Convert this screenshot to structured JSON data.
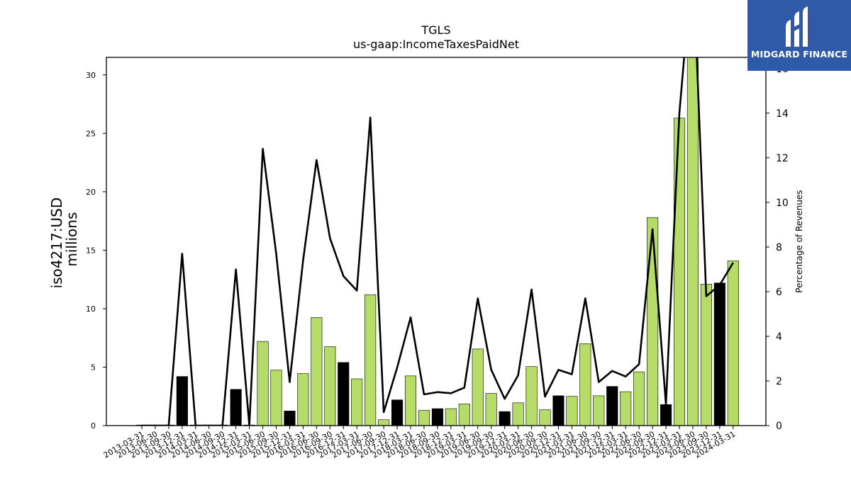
{
  "chart_data": {
    "type": "bar",
    "title": "TGLS",
    "subtitle": "us-gaap:IncomeTaxesPaidNet",
    "ylabel_line1": "iso4217:USD",
    "ylabel_line2": "millions",
    "y2label": "Percentage of Revenues",
    "ylim": [
      0,
      31.5
    ],
    "y2lim": [
      0,
      16.5
    ],
    "yticks": [
      "0",
      "5",
      "10",
      "15",
      "20",
      "25",
      "30"
    ],
    "y2ticks": [
      "0",
      "2",
      "4",
      "6",
      "8",
      "10",
      "12",
      "14",
      "16"
    ],
    "categories": [
      "2013-03-31",
      "2013-06-30",
      "2013-09-30",
      "2013-12-31",
      "2014-03-31",
      "2014-06-30",
      "2014-09-30",
      "2014-12-31",
      "2015-03-31",
      "2015-06-30",
      "2015-09-30",
      "2015-12-31",
      "2016-03-31",
      "2016-06-30",
      "2016-09-30",
      "2016-12-31",
      "2017-03-31",
      "2017-06-30",
      "2017-09-30",
      "2017-12-31",
      "2018-03-31",
      "2018-06-30",
      "2018-09-30",
      "2018-12-31",
      "2019-03-31",
      "2019-06-30",
      "2019-09-30",
      "2019-12-31",
      "2020-03-31",
      "2020-06-30",
      "2020-09-30",
      "2020-12-31",
      "2021-03-31",
      "2021-06-30",
      "2021-09-30",
      "2021-12-31",
      "2022-03-31",
      "2022-06-30",
      "2022-09-30",
      "2022-12-31",
      "2023-03-31",
      "2023-06-30",
      "2023-09-30",
      "2023-12-31",
      "2024-03-31"
    ],
    "bar_values": [
      0.05,
      0.05,
      0.05,
      4.2,
      0.05,
      0.05,
      0.05,
      3.1,
      0.05,
      7.2,
      4.75,
      1.25,
      4.45,
      9.25,
      6.75,
      5.4,
      4.0,
      11.2,
      0.5,
      2.2,
      4.25,
      1.3,
      1.45,
      1.45,
      1.85,
      6.55,
      2.75,
      1.2,
      1.95,
      5.05,
      1.35,
      2.55,
      2.5,
      7.0,
      2.55,
      3.35,
      2.9,
      4.6,
      17.8,
      1.8,
      26.3,
      31.5,
      12.1,
      12.2,
      14.1
    ],
    "bar_colors": [
      "#b5dc68",
      "#b5dc68",
      "#b5dc68",
      "#000000",
      "#b5dc68",
      "#b5dc68",
      "#b5dc68",
      "#000000",
      "#b5dc68",
      "#b5dc68",
      "#b5dc68",
      "#000000",
      "#b5dc68",
      "#b5dc68",
      "#b5dc68",
      "#000000",
      "#b5dc68",
      "#b5dc68",
      "#b5dc68",
      "#000000",
      "#b5dc68",
      "#b5dc68",
      "#000000",
      "#b5dc68",
      "#b5dc68",
      "#b5dc68",
      "#b5dc68",
      "#000000",
      "#b5dc68",
      "#b5dc68",
      "#b5dc68",
      "#000000",
      "#b5dc68",
      "#b5dc68",
      "#b5dc68",
      "#000000",
      "#b5dc68",
      "#b5dc68",
      "#b5dc68",
      "#000000",
      "#b5dc68",
      "#b5dc68",
      "#b5dc68",
      "#000000",
      "#b5dc68"
    ],
    "line_values": [
      0,
      0,
      0,
      7.7,
      0,
      0,
      0,
      7.0,
      0,
      12.4,
      7.7,
      1.95,
      7.4,
      11.9,
      8.4,
      6.7,
      6.05,
      13.8,
      0.6,
      2.6,
      4.85,
      1.4,
      1.5,
      1.45,
      1.7,
      5.7,
      2.5,
      1.2,
      2.25,
      6.1,
      1.3,
      2.5,
      2.3,
      5.7,
      1.95,
      2.45,
      2.2,
      2.75,
      8.8,
      0.95,
      14.0,
      21.0,
      5.8,
      6.3,
      7.3
    ],
    "grid": false,
    "legend": "none",
    "accent_green": "#b5dc68",
    "dark_bar": "#000000"
  },
  "logo": {
    "text": "MIDGARD FINANCE",
    "bg": "#2f5aa8"
  }
}
